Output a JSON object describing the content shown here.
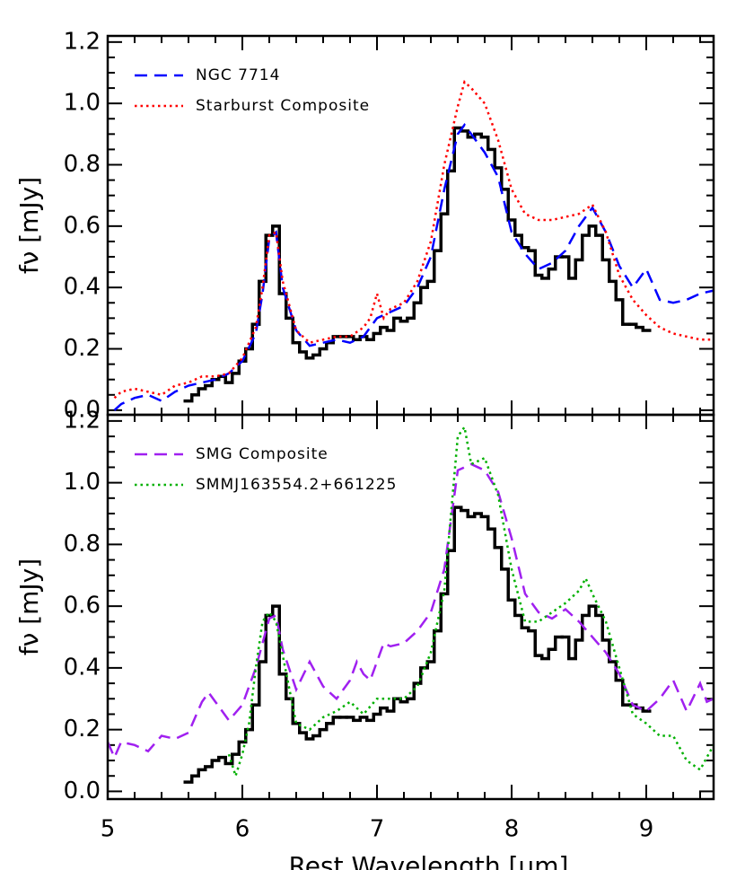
{
  "chart_data": [
    {
      "type": "line",
      "xlim": [
        5,
        9.5
      ],
      "xticks": [
        5,
        6,
        7,
        8,
        9
      ],
      "show_xticklabels": false,
      "ylim": [
        -0.015,
        1.22
      ],
      "yticks": [
        0.0,
        0.2,
        0.4,
        0.6,
        0.8,
        1.0,
        1.2
      ],
      "ylabel": "fν [mJy]",
      "legend": "upper left",
      "series": [
        {
          "color": "#000000",
          "style": "solid",
          "drawstyle": "steps",
          "x": [
            5.6,
            5.65,
            5.7,
            5.75,
            5.8,
            5.85,
            5.9,
            5.95,
            6.0,
            6.05,
            6.1,
            6.15,
            6.2,
            6.25,
            6.3,
            6.35,
            6.4,
            6.45,
            6.5,
            6.55,
            6.6,
            6.65,
            6.7,
            6.75,
            6.8,
            6.85,
            6.9,
            6.95,
            7.0,
            7.05,
            7.1,
            7.15,
            7.2,
            7.25,
            7.3,
            7.35,
            7.4,
            7.45,
            7.5,
            7.55,
            7.6,
            7.65,
            7.7,
            7.75,
            7.8,
            7.85,
            7.9,
            7.95,
            8.0,
            8.05,
            8.1,
            8.15,
            8.2,
            8.25,
            8.3,
            8.35,
            8.4,
            8.45,
            8.5,
            8.55,
            8.6,
            8.65,
            8.7,
            8.75,
            8.8,
            8.85,
            8.9,
            8.95,
            9.0
          ],
          "values": [
            0.03,
            0.05,
            0.07,
            0.08,
            0.1,
            0.11,
            0.09,
            0.12,
            0.16,
            0.2,
            0.28,
            0.42,
            0.57,
            0.6,
            0.38,
            0.3,
            0.22,
            0.19,
            0.17,
            0.18,
            0.2,
            0.22,
            0.24,
            0.24,
            0.24,
            0.23,
            0.24,
            0.23,
            0.25,
            0.27,
            0.26,
            0.3,
            0.29,
            0.3,
            0.35,
            0.4,
            0.42,
            0.52,
            0.64,
            0.78,
            0.92,
            0.91,
            0.89,
            0.9,
            0.89,
            0.85,
            0.79,
            0.72,
            0.62,
            0.57,
            0.53,
            0.52,
            0.44,
            0.43,
            0.46,
            0.5,
            0.5,
            0.43,
            0.49,
            0.57,
            0.6,
            0.57,
            0.49,
            0.42,
            0.36,
            0.28,
            0.28,
            0.27,
            0.26
          ]
        },
        {
          "name": "NGC 7714",
          "color": "#0000ff",
          "style": "dashed",
          "x": [
            5.05,
            5.1,
            5.2,
            5.3,
            5.4,
            5.5,
            5.6,
            5.7,
            5.8,
            5.9,
            6.0,
            6.1,
            6.15,
            6.2,
            6.25,
            6.3,
            6.4,
            6.5,
            6.6,
            6.7,
            6.8,
            6.9,
            7.0,
            7.1,
            7.2,
            7.3,
            7.4,
            7.5,
            7.6,
            7.65,
            7.7,
            7.8,
            7.9,
            8.0,
            8.1,
            8.2,
            8.3,
            8.4,
            8.5,
            8.6,
            8.7,
            8.8,
            8.9,
            9.0,
            9.1,
            9.2,
            9.3,
            9.4,
            9.5
          ],
          "values": [
            0.0,
            0.02,
            0.04,
            0.05,
            0.03,
            0.06,
            0.08,
            0.09,
            0.1,
            0.12,
            0.16,
            0.25,
            0.38,
            0.56,
            0.58,
            0.4,
            0.26,
            0.21,
            0.22,
            0.23,
            0.22,
            0.24,
            0.3,
            0.32,
            0.34,
            0.4,
            0.5,
            0.72,
            0.9,
            0.93,
            0.9,
            0.84,
            0.76,
            0.58,
            0.51,
            0.46,
            0.48,
            0.52,
            0.6,
            0.66,
            0.58,
            0.47,
            0.4,
            0.46,
            0.36,
            0.35,
            0.36,
            0.38,
            0.39
          ]
        },
        {
          "name": "Starburst Composite",
          "color": "#ff0000",
          "style": "dotted",
          "x": [
            5.05,
            5.1,
            5.2,
            5.3,
            5.4,
            5.5,
            5.6,
            5.7,
            5.8,
            5.9,
            6.0,
            6.1,
            6.15,
            6.2,
            6.25,
            6.3,
            6.4,
            6.5,
            6.6,
            6.7,
            6.8,
            6.9,
            6.95,
            7.0,
            7.05,
            7.1,
            7.2,
            7.3,
            7.4,
            7.5,
            7.6,
            7.65,
            7.7,
            7.8,
            7.9,
            8.0,
            8.1,
            8.2,
            8.3,
            8.4,
            8.5,
            8.6,
            8.7,
            8.8,
            8.9,
            9.0,
            9.1,
            9.2,
            9.3,
            9.4,
            9.5
          ],
          "values": [
            0.04,
            0.06,
            0.07,
            0.06,
            0.05,
            0.08,
            0.09,
            0.11,
            0.11,
            0.12,
            0.17,
            0.27,
            0.4,
            0.57,
            0.58,
            0.42,
            0.26,
            0.22,
            0.23,
            0.24,
            0.24,
            0.27,
            0.3,
            0.38,
            0.3,
            0.33,
            0.35,
            0.42,
            0.55,
            0.8,
            0.99,
            1.07,
            1.05,
            1.0,
            0.88,
            0.72,
            0.64,
            0.62,
            0.62,
            0.63,
            0.64,
            0.67,
            0.58,
            0.44,
            0.36,
            0.31,
            0.27,
            0.25,
            0.24,
            0.23,
            0.23
          ]
        }
      ]
    },
    {
      "type": "line",
      "xlim": [
        5,
        9.5
      ],
      "xticks": [
        5,
        6,
        7,
        8,
        9
      ],
      "show_xticklabels": true,
      "xlabel": "Rest Wavelength [μm]",
      "ylim": [
        -0.025,
        1.22
      ],
      "yticks": [
        0.0,
        0.2,
        0.4,
        0.6,
        0.8,
        1.0,
        1.2
      ],
      "ylabel": "fν [mJy]",
      "legend": "upper left",
      "series": [
        {
          "color": "#000000",
          "style": "solid",
          "drawstyle": "steps",
          "x": [
            5.6,
            5.65,
            5.7,
            5.75,
            5.8,
            5.85,
            5.9,
            5.95,
            6.0,
            6.05,
            6.1,
            6.15,
            6.2,
            6.25,
            6.3,
            6.35,
            6.4,
            6.45,
            6.5,
            6.55,
            6.6,
            6.65,
            6.7,
            6.75,
            6.8,
            6.85,
            6.9,
            6.95,
            7.0,
            7.05,
            7.1,
            7.15,
            7.2,
            7.25,
            7.3,
            7.35,
            7.4,
            7.45,
            7.5,
            7.55,
            7.6,
            7.65,
            7.7,
            7.75,
            7.8,
            7.85,
            7.9,
            7.95,
            8.0,
            8.05,
            8.1,
            8.15,
            8.2,
            8.25,
            8.3,
            8.35,
            8.4,
            8.45,
            8.5,
            8.55,
            8.6,
            8.65,
            8.7,
            8.75,
            8.8,
            8.85,
            8.9,
            8.95,
            9.0
          ],
          "values": [
            0.03,
            0.05,
            0.07,
            0.08,
            0.1,
            0.11,
            0.09,
            0.12,
            0.16,
            0.2,
            0.28,
            0.42,
            0.57,
            0.6,
            0.38,
            0.3,
            0.22,
            0.19,
            0.17,
            0.18,
            0.2,
            0.22,
            0.24,
            0.24,
            0.24,
            0.23,
            0.24,
            0.23,
            0.25,
            0.27,
            0.26,
            0.3,
            0.29,
            0.3,
            0.35,
            0.4,
            0.42,
            0.52,
            0.64,
            0.78,
            0.92,
            0.91,
            0.89,
            0.9,
            0.89,
            0.85,
            0.79,
            0.72,
            0.62,
            0.57,
            0.53,
            0.52,
            0.44,
            0.43,
            0.46,
            0.5,
            0.5,
            0.43,
            0.49,
            0.57,
            0.6,
            0.57,
            0.49,
            0.42,
            0.36,
            0.28,
            0.28,
            0.27,
            0.26
          ]
        },
        {
          "name": "SMG Composite",
          "color": "#a020f0",
          "style": "dashed",
          "x": [
            5.0,
            5.05,
            5.1,
            5.2,
            5.3,
            5.4,
            5.5,
            5.6,
            5.7,
            5.75,
            5.8,
            5.9,
            6.0,
            6.1,
            6.2,
            6.25,
            6.3,
            6.4,
            6.5,
            6.6,
            6.7,
            6.8,
            6.85,
            6.9,
            6.95,
            7.0,
            7.05,
            7.1,
            7.2,
            7.3,
            7.4,
            7.5,
            7.6,
            7.7,
            7.8,
            7.9,
            8.0,
            8.1,
            8.2,
            8.3,
            8.4,
            8.5,
            8.6,
            8.7,
            8.8,
            8.9,
            9.0,
            9.1,
            9.2,
            9.3,
            9.4,
            9.45,
            9.5
          ],
          "values": [
            0.16,
            0.11,
            0.16,
            0.15,
            0.13,
            0.18,
            0.17,
            0.19,
            0.29,
            0.32,
            0.29,
            0.23,
            0.28,
            0.4,
            0.56,
            0.57,
            0.46,
            0.33,
            0.42,
            0.34,
            0.3,
            0.36,
            0.42,
            0.38,
            0.36,
            0.42,
            0.48,
            0.47,
            0.48,
            0.52,
            0.58,
            0.72,
            1.04,
            1.06,
            1.04,
            0.97,
            0.82,
            0.64,
            0.58,
            0.56,
            0.59,
            0.55,
            0.5,
            0.45,
            0.38,
            0.28,
            0.26,
            0.3,
            0.36,
            0.26,
            0.35,
            0.29,
            0.3
          ]
        },
        {
          "name": "SMMJ163554.2+661225",
          "color": "#00b000",
          "style": "dotted",
          "x": [
            5.9,
            5.95,
            6.0,
            6.05,
            6.1,
            6.15,
            6.2,
            6.25,
            6.3,
            6.4,
            6.5,
            6.6,
            6.7,
            6.8,
            6.9,
            7.0,
            7.1,
            7.2,
            7.3,
            7.4,
            7.5,
            7.6,
            7.65,
            7.7,
            7.8,
            7.9,
            8.0,
            8.1,
            8.2,
            8.3,
            8.4,
            8.5,
            8.55,
            8.6,
            8.7,
            8.8,
            8.9,
            9.0,
            9.1,
            9.2,
            9.3,
            9.4,
            9.5
          ],
          "values": [
            0.12,
            0.05,
            0.12,
            0.22,
            0.4,
            0.55,
            0.58,
            0.55,
            0.44,
            0.22,
            0.2,
            0.24,
            0.26,
            0.29,
            0.25,
            0.3,
            0.3,
            0.3,
            0.34,
            0.45,
            0.65,
            1.15,
            1.18,
            1.06,
            1.08,
            0.96,
            0.72,
            0.55,
            0.55,
            0.58,
            0.61,
            0.65,
            0.69,
            0.64,
            0.55,
            0.4,
            0.25,
            0.22,
            0.18,
            0.18,
            0.1,
            0.07,
            0.15
          ]
        }
      ]
    }
  ]
}
